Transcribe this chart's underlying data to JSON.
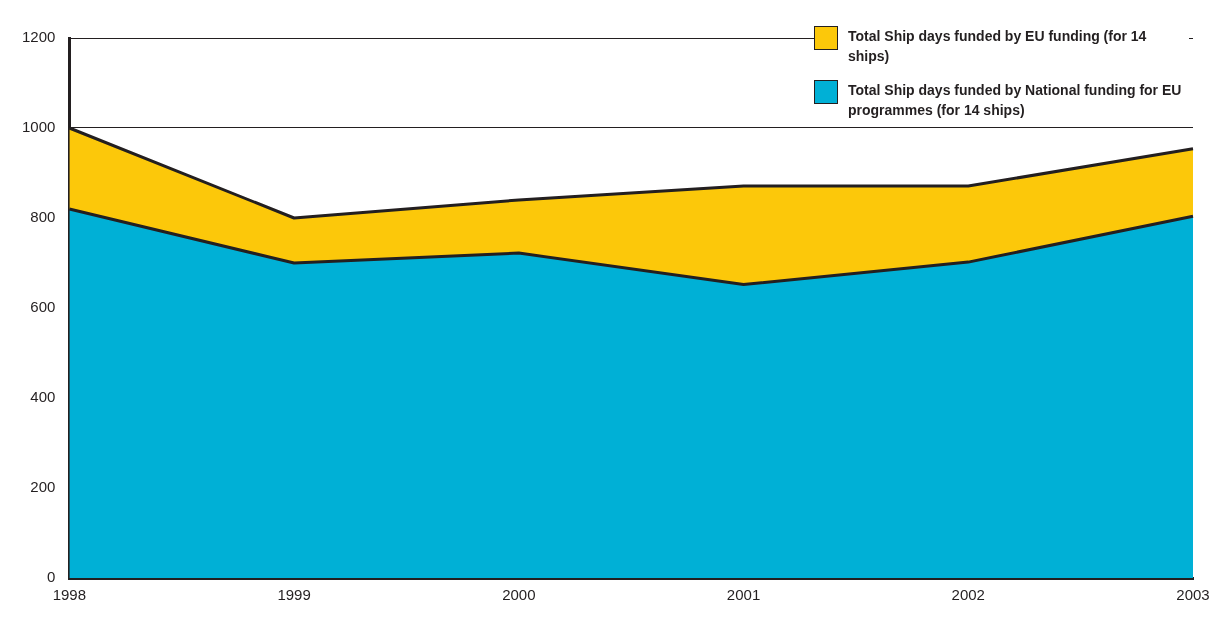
{
  "chart_data": {
    "type": "area",
    "stacked": true,
    "categories": [
      "1998",
      "1999",
      "2000",
      "2001",
      "2002",
      "2003"
    ],
    "series": [
      {
        "name": "Total Ship days funded by National funding for EU programmes (for 14 ships)",
        "color": "#00b0d6",
        "values": [
          820,
          700,
          722,
          652,
          702,
          804
        ]
      },
      {
        "name": "Total Ship days funded by EU funding (for 14 ships)",
        "color": "#fcc80a",
        "values": [
          180,
          100,
          118,
          219,
          169,
          150
        ]
      }
    ],
    "ylim": [
      0,
      1200
    ],
    "yticks": [
      0,
      200,
      400,
      600,
      800,
      1000,
      1200
    ],
    "grid": "y",
    "legend": "top right"
  }
}
